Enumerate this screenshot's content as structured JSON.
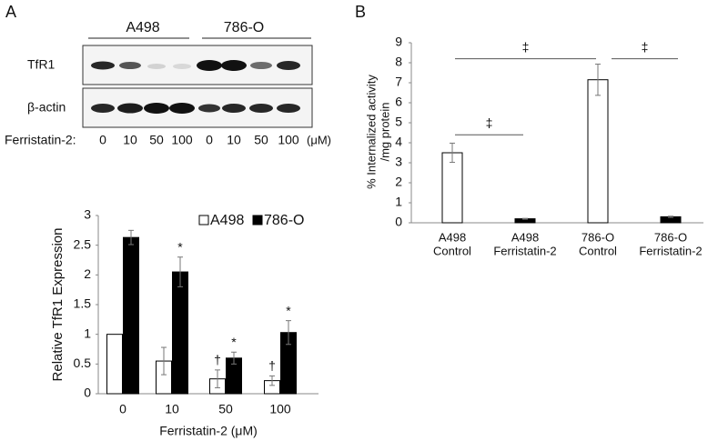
{
  "panel_labels": [
    "A",
    "B"
  ],
  "blot": {
    "groups": [
      "A498",
      "786-O"
    ],
    "rows": [
      "TfR1",
      "β-actin"
    ],
    "dose_label": "Ferristatin-2:",
    "lanes": [
      "0",
      "10",
      "50",
      "100",
      "0",
      "10",
      "50",
      "100"
    ],
    "unit": "(μM)"
  },
  "chart_data": [
    {
      "type": "grouped_bar",
      "x_label": "Ferristatin-2 (μM)",
      "y_label": "Relative TfR1 Expression",
      "categories": [
        "0",
        "10",
        "50",
        "100"
      ],
      "series": [
        {
          "name": "A498",
          "color": "#ffffff",
          "values": [
            1,
            0.55,
            0.25,
            0.22
          ],
          "errors": [
            null,
            0.23,
            0.15,
            0.08
          ],
          "annotations": [
            null,
            null,
            "†",
            "†"
          ]
        },
        {
          "name": "786-O",
          "color": "#000000",
          "values": [
            2.63,
            2.05,
            0.6,
            1.03
          ],
          "errors": [
            0.12,
            0.25,
            0.1,
            0.2
          ],
          "annotations": [
            null,
            "*",
            "*",
            "*"
          ]
        }
      ],
      "ylim": [
        0,
        3
      ],
      "yticks": [
        0,
        0.5,
        1,
        1.5,
        2,
        2.5,
        3
      ],
      "legend": "top-right"
    },
    {
      "type": "bar",
      "y_label": [
        "% Internalized activity",
        "/mg protein"
      ],
      "categories": [
        [
          "A498",
          "Control"
        ],
        [
          "A498",
          "Ferristatin-2"
        ],
        [
          "786-O",
          "Control"
        ],
        [
          "786-O",
          "Ferristatin-2"
        ]
      ],
      "values": [
        3.5,
        0.2,
        7.15,
        0.3
      ],
      "errors": [
        0.48,
        0.02,
        0.78,
        0.03
      ],
      "colors": [
        "#ffffff",
        "#000000",
        "#ffffff",
        "#000000"
      ],
      "comparisons": [
        {
          "bars": [
            0,
            1
          ],
          "y": 4.4,
          "label": "‡"
        },
        {
          "bars": [
            0,
            2
          ],
          "y": 8.2,
          "label": "‡"
        },
        {
          "bars": [
            2,
            3
          ],
          "y": 8.2,
          "label": "‡"
        }
      ],
      "ylim": [
        0,
        9
      ],
      "yticks": [
        0,
        1,
        2,
        3,
        4,
        5,
        6,
        7,
        8,
        9
      ]
    }
  ]
}
